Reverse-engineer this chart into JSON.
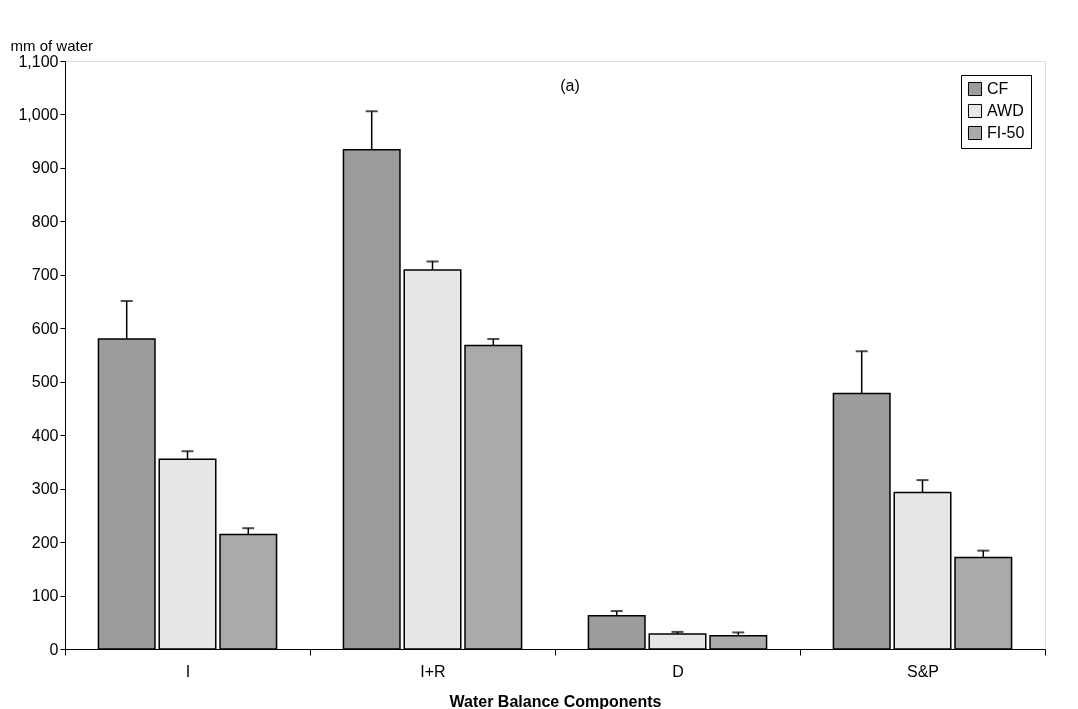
{
  "chart_data": {
    "type": "bar",
    "xlabel": "Water Balance Components",
    "ylabel": "mm of water",
    "categories": [
      "I",
      "I+R",
      "D",
      "S&P"
    ],
    "series": [
      {
        "name": "CF",
        "color": "#9c9c9c",
        "values": [
          580,
          934,
          62,
          478
        ],
        "errors": [
          [
            580,
            651
          ],
          [
            934,
            1006
          ],
          [
            62,
            71
          ],
          [
            478,
            557
          ]
        ]
      },
      {
        "name": "AWD",
        "color": "#e6e6e6",
        "values": [
          355,
          709,
          28,
          293
        ],
        "errors": [
          [
            355,
            370
          ],
          [
            709,
            725
          ],
          [
            28,
            32
          ],
          [
            293,
            316
          ]
        ]
      },
      {
        "name": "FI-50",
        "color": "#aaaaaa",
        "values": [
          214,
          568,
          25,
          171
        ],
        "errors": [
          [
            214,
            226
          ],
          [
            568,
            580
          ],
          [
            25,
            31
          ],
          [
            171,
            184
          ]
        ]
      }
    ],
    "ylim": [
      0,
      1100
    ],
    "yticks": [
      0,
      100,
      200,
      300,
      400,
      500,
      600,
      700,
      800,
      900,
      {
        "value": 1000,
        "label": "1,000"
      },
      {
        "value": 1100,
        "label": "1,100"
      }
    ],
    "annotations": [
      "(a)"
    ],
    "legend": "top right",
    "grid": false
  }
}
